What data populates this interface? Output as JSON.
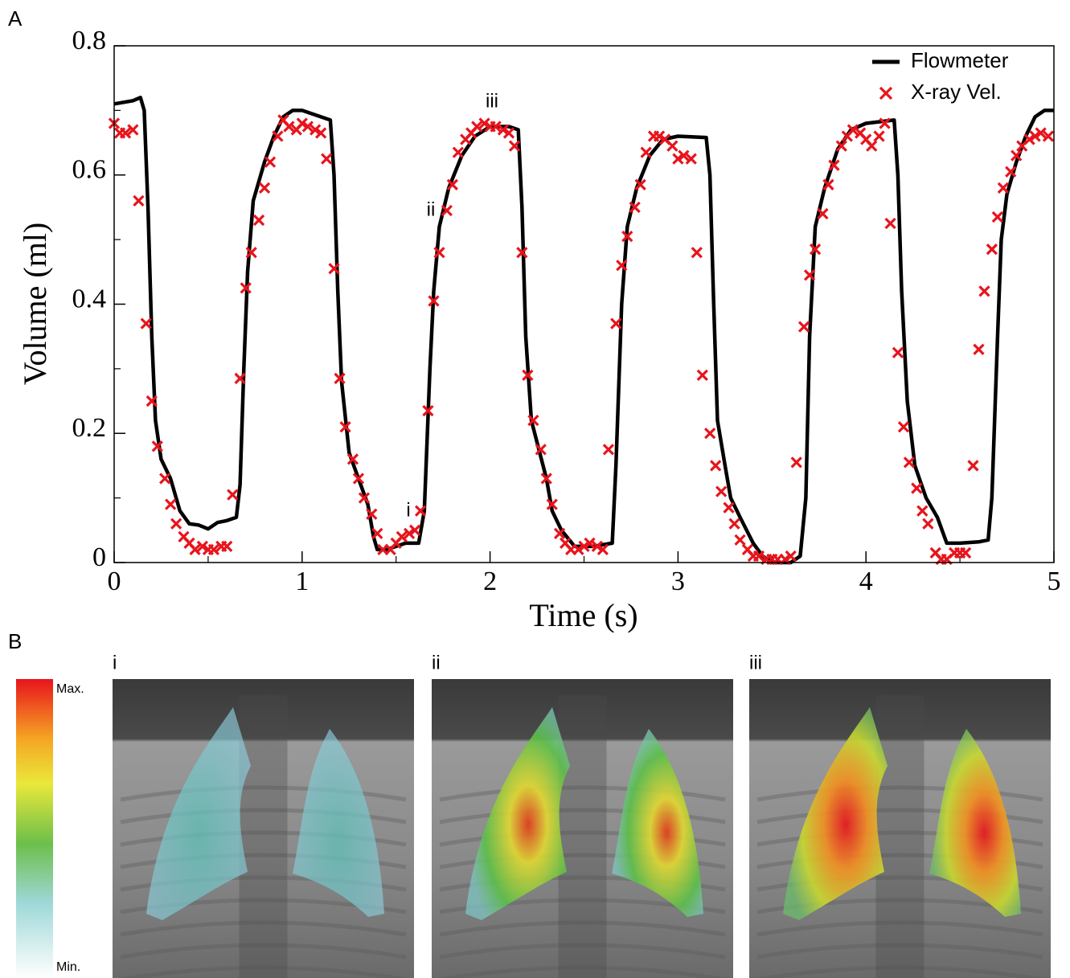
{
  "chart_data": {
    "type": "line",
    "panel_label": "A",
    "xlabel": "Time (s)",
    "ylabel": "Volume (ml)",
    "xlim": [
      0,
      5
    ],
    "ylim": [
      0,
      0.8
    ],
    "xticks": [
      0,
      1,
      2,
      3,
      4,
      5
    ],
    "yticks": [
      0,
      0.2,
      0.4,
      0.6,
      0.8
    ],
    "xminorticks": [
      0.5,
      1.5,
      2.5,
      3.5,
      4.5
    ],
    "yminorticks": [
      0.1,
      0.3,
      0.5,
      0.7
    ],
    "legend_loc": "upper right",
    "annotations": [
      "i",
      "ii",
      "iii"
    ],
    "series": [
      {
        "name": "Flowmeter",
        "color": "#000000",
        "type": "line",
        "x": [
          0,
          0.1,
          0.14,
          0.16,
          0.18,
          0.2,
          0.22,
          0.25,
          0.3,
          0.35,
          0.4,
          0.45,
          0.5,
          0.55,
          0.6,
          0.65,
          0.67,
          0.69,
          0.71,
          0.74,
          0.8,
          0.85,
          0.9,
          0.95,
          1.0,
          1.05,
          1.1,
          1.15,
          1.17,
          1.19,
          1.21,
          1.25,
          1.3,
          1.35,
          1.38,
          1.4,
          1.45,
          1.5,
          1.55,
          1.62,
          1.65,
          1.68,
          1.7,
          1.73,
          1.78,
          1.85,
          1.92,
          2.0,
          2.1,
          2.15,
          2.17,
          2.19,
          2.22,
          2.3,
          2.33,
          2.38,
          2.45,
          2.55,
          2.65,
          2.67,
          2.7,
          2.73,
          2.78,
          2.85,
          2.92,
          3.0,
          3.15,
          3.17,
          3.19,
          3.21,
          3.25,
          3.28,
          3.33,
          3.4,
          3.45,
          3.5,
          3.6,
          3.65,
          3.68,
          3.7,
          3.73,
          3.78,
          3.85,
          3.92,
          4.0,
          4.15,
          4.17,
          4.19,
          4.22,
          4.26,
          4.32,
          4.38,
          4.43,
          4.5,
          4.6,
          4.65,
          4.67,
          4.7,
          4.72,
          4.75,
          4.8,
          4.85,
          4.9,
          4.95,
          5.0
        ],
        "values": [
          0.71,
          0.715,
          0.72,
          0.7,
          0.55,
          0.35,
          0.22,
          0.16,
          0.13,
          0.08,
          0.06,
          0.058,
          0.052,
          0.062,
          0.065,
          0.07,
          0.12,
          0.3,
          0.45,
          0.56,
          0.62,
          0.66,
          0.69,
          0.7,
          0.7,
          0.695,
          0.69,
          0.685,
          0.6,
          0.42,
          0.28,
          0.17,
          0.13,
          0.09,
          0.04,
          0.02,
          0.02,
          0.025,
          0.03,
          0.03,
          0.08,
          0.3,
          0.42,
          0.52,
          0.58,
          0.63,
          0.66,
          0.675,
          0.675,
          0.67,
          0.55,
          0.35,
          0.22,
          0.13,
          0.08,
          0.05,
          0.025,
          0.025,
          0.03,
          0.15,
          0.4,
          0.52,
          0.58,
          0.63,
          0.655,
          0.66,
          0.658,
          0.6,
          0.4,
          0.22,
          0.15,
          0.1,
          0.07,
          0.03,
          0.01,
          0.0,
          0.0,
          0.01,
          0.1,
          0.35,
          0.52,
          0.58,
          0.64,
          0.67,
          0.68,
          0.685,
          0.6,
          0.42,
          0.25,
          0.15,
          0.1,
          0.07,
          0.03,
          0.03,
          0.032,
          0.035,
          0.1,
          0.35,
          0.5,
          0.57,
          0.62,
          0.66,
          0.69,
          0.7,
          0.7
        ]
      },
      {
        "name": "X-ray Vel.",
        "color": "#e8141c",
        "type": "scatter",
        "x": [
          0.0,
          0.03,
          0.06,
          0.1,
          0.13,
          0.17,
          0.2,
          0.23,
          0.27,
          0.3,
          0.33,
          0.37,
          0.4,
          0.43,
          0.47,
          0.5,
          0.53,
          0.57,
          0.6,
          0.63,
          0.67,
          0.7,
          0.73,
          0.77,
          0.8,
          0.83,
          0.87,
          0.9,
          0.93,
          0.97,
          1.0,
          1.03,
          1.07,
          1.1,
          1.13,
          1.17,
          1.2,
          1.23,
          1.27,
          1.3,
          1.33,
          1.37,
          1.4,
          1.43,
          1.47,
          1.5,
          1.53,
          1.57,
          1.6,
          1.63,
          1.67,
          1.7,
          1.73,
          1.77,
          1.8,
          1.83,
          1.87,
          1.9,
          1.93,
          1.97,
          2.0,
          2.03,
          2.07,
          2.1,
          2.13,
          2.17,
          2.2,
          2.23,
          2.27,
          2.3,
          2.33,
          2.37,
          2.4,
          2.43,
          2.47,
          2.5,
          2.53,
          2.57,
          2.6,
          2.63,
          2.67,
          2.7,
          2.73,
          2.77,
          2.8,
          2.83,
          2.87,
          2.9,
          2.93,
          2.97,
          3.0,
          3.03,
          3.07,
          3.1,
          3.13,
          3.17,
          3.2,
          3.23,
          3.27,
          3.3,
          3.33,
          3.37,
          3.4,
          3.43,
          3.47,
          3.5,
          3.53,
          3.57,
          3.6,
          3.63,
          3.67,
          3.7,
          3.73,
          3.77,
          3.8,
          3.83,
          3.87,
          3.9,
          3.93,
          3.97,
          4.0,
          4.03,
          4.07,
          4.1,
          4.13,
          4.17,
          4.2,
          4.23,
          4.27,
          4.3,
          4.33,
          4.37,
          4.4,
          4.43,
          4.47,
          4.5,
          4.53,
          4.57,
          4.6,
          4.63,
          4.67,
          4.7,
          4.73,
          4.77,
          4.8,
          4.83,
          4.87,
          4.9,
          4.93,
          4.97
        ],
        "values": [
          0.68,
          0.665,
          0.665,
          0.67,
          0.56,
          0.37,
          0.25,
          0.18,
          0.13,
          0.09,
          0.06,
          0.04,
          0.03,
          0.02,
          0.025,
          0.02,
          0.02,
          0.025,
          0.025,
          0.105,
          0.285,
          0.425,
          0.48,
          0.53,
          0.58,
          0.62,
          0.66,
          0.685,
          0.675,
          0.67,
          0.68,
          0.675,
          0.67,
          0.665,
          0.625,
          0.455,
          0.285,
          0.21,
          0.16,
          0.13,
          0.1,
          0.075,
          0.045,
          0.02,
          0.02,
          0.03,
          0.04,
          0.045,
          0.05,
          0.08,
          0.235,
          0.405,
          0.48,
          0.545,
          0.585,
          0.635,
          0.655,
          0.665,
          0.675,
          0.68,
          0.675,
          0.675,
          0.67,
          0.665,
          0.645,
          0.48,
          0.29,
          0.22,
          0.175,
          0.13,
          0.09,
          0.045,
          0.03,
          0.02,
          0.02,
          0.025,
          0.03,
          0.025,
          0.02,
          0.175,
          0.37,
          0.46,
          0.505,
          0.55,
          0.585,
          0.635,
          0.66,
          0.66,
          0.655,
          0.645,
          0.625,
          0.63,
          0.625,
          0.48,
          0.29,
          0.2,
          0.15,
          0.11,
          0.085,
          0.06,
          0.035,
          0.02,
          0.01,
          0.01,
          0.005,
          0.005,
          0.005,
          0.005,
          0.01,
          0.155,
          0.365,
          0.445,
          0.485,
          0.54,
          0.585,
          0.615,
          0.645,
          0.66,
          0.67,
          0.665,
          0.655,
          0.645,
          0.66,
          0.68,
          0.525,
          0.325,
          0.21,
          0.155,
          0.115,
          0.08,
          0.06,
          0.015,
          0.005,
          0.005,
          0.015,
          0.015,
          0.015,
          0.15,
          0.33,
          0.42,
          0.485,
          0.535,
          0.58,
          0.605,
          0.63,
          0.645,
          0.655,
          0.66,
          0.665,
          0.66
        ]
      }
    ]
  },
  "panel_b": {
    "label": "B",
    "colorbar": {
      "max_label": "Max.",
      "min_label": "Min."
    },
    "images": [
      {
        "label": "i"
      },
      {
        "label": "ii"
      },
      {
        "label": "iii"
      }
    ]
  }
}
